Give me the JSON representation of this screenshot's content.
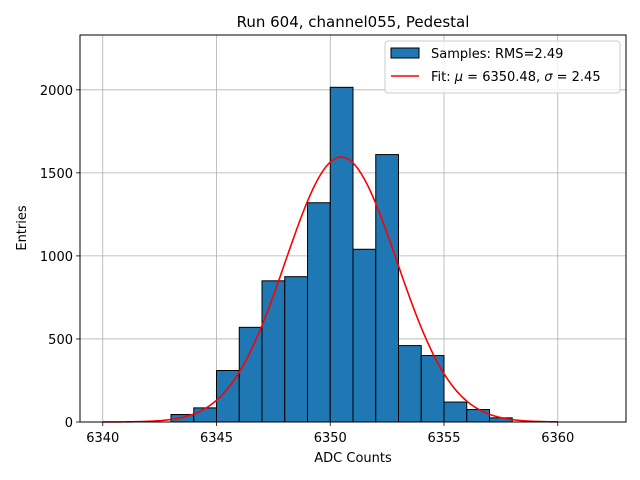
{
  "chart_data": {
    "type": "bar",
    "title": "Run 604, channel055, Pedestal",
    "xlabel": "ADC Counts",
    "ylabel": "Entries",
    "xlim": [
      6339,
      6363
    ],
    "ylim": [
      0,
      2330
    ],
    "x_ticks": [
      6340,
      6345,
      6350,
      6355,
      6360
    ],
    "y_ticks": [
      0,
      500,
      1000,
      1500,
      2000
    ],
    "grid": true,
    "bin_edges": [
      6343,
      6344,
      6345,
      6346,
      6347,
      6348,
      6349,
      6350,
      6351,
      6352,
      6353,
      6354,
      6355,
      6356,
      6357,
      6358
    ],
    "values": [
      45,
      85,
      310,
      570,
      850,
      875,
      1320,
      2015,
      1040,
      1610,
      460,
      400,
      120,
      75,
      25
    ],
    "bar_color": "#1f77b4",
    "fit": {
      "mu": 6350.48,
      "sigma": 2.45,
      "peak": 1595,
      "x_range": [
        6340,
        6360
      ],
      "color": "#ff0000"
    },
    "legend": {
      "position": "top-right",
      "samples_label": "Samples: RMS=2.49",
      "fit_label_prefix": "Fit: ",
      "mu_symbol": "μ",
      "mu_text": " = 6350.48, ",
      "sigma_symbol": "σ",
      "sigma_text": " = 2.45"
    }
  }
}
